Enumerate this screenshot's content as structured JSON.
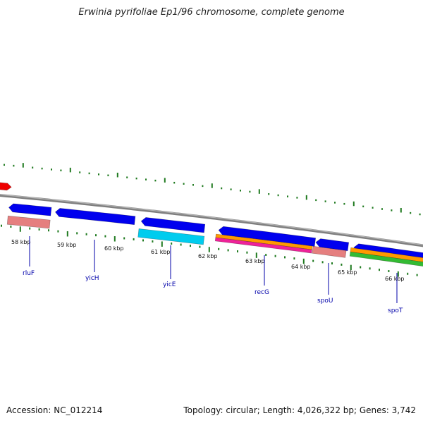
{
  "title": "Erwinia pyrifoliae Ep1/96 chromosome, complete genome",
  "footer": {
    "accession": "Accession: NC_012214",
    "summary": "Topology: circular; Length: 4,026,322 bp; Genes: 3,742"
  },
  "colors": {
    "backbone": "#7f7f7f",
    "gene": "#0000ee",
    "gene_highlight": "#4d4dff",
    "tick": "#1f7a1f",
    "label_line": "#0000aa",
    "label_text": "#0000aa",
    "feature_red": "#ee0000",
    "feature_pink": "#e57f7f",
    "feature_cyan": "#00ccee",
    "feature_orange": "#ff9900",
    "feature_magenta": "#ee2299",
    "feature_green": "#33bb33"
  },
  "scale": {
    "labels": [
      "58 kbp",
      "59 kbp",
      "60 kbp",
      "61 kbp",
      "62 kbp",
      "63 kbp",
      "64 kbp",
      "65 kbp",
      "66 kbp"
    ]
  },
  "genes": [
    {
      "name": "rluF"
    },
    {
      "name": "yicH"
    },
    {
      "name": "yicE"
    },
    {
      "name": "recG"
    },
    {
      "name": "spoU"
    },
    {
      "name": "spoT"
    }
  ]
}
